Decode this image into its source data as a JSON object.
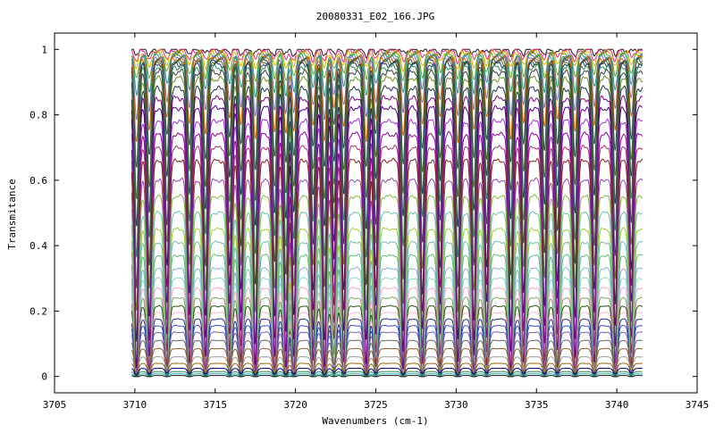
{
  "chart_data": {
    "type": "line",
    "title": "20080331_E02_166.JPG",
    "xlabel": "Wavenumbers (cm-1)",
    "ylabel": "Transmitance",
    "xlim": [
      3705,
      3745
    ],
    "ylim": [
      -0.05,
      1.05
    ],
    "x_ticks": [
      "3705",
      "3710",
      "3715",
      "3720",
      "3725",
      "3730",
      "3735",
      "3740",
      "3745"
    ],
    "x_tick_values": [
      3705,
      3710,
      3715,
      3720,
      3725,
      3730,
      3735,
      3740,
      3745
    ],
    "y_ticks": [
      "0",
      "0.2",
      "0.4",
      "0.6",
      "0.8",
      "1"
    ],
    "y_tick_values": [
      0,
      0.2,
      0.4,
      0.6,
      0.8,
      1
    ],
    "grid": false,
    "legend": "none",
    "x_range": [
      3709.8,
      3741.6
    ],
    "absorption_line_centers": [
      3710.1,
      3710.9,
      3712.0,
      3713.4,
      3714.4,
      3715.9,
      3716.6,
      3717.5,
      3718.7,
      3719.4,
      3719.9,
      3721.1,
      3721.8,
      3722.4,
      3723.0,
      3724.4,
      3725.0,
      3726.7,
      3727.9,
      3729.0,
      3730.1,
      3731.1,
      3731.9,
      3733.4,
      3734.2,
      3735.5,
      3736.3,
      3737.4,
      3738.6,
      3739.9,
      3740.9
    ],
    "absorption_line_strengths": [
      1.0,
      0.9,
      0.7,
      0.8,
      0.9,
      0.7,
      0.8,
      1.0,
      0.9,
      0.95,
      0.9,
      0.8,
      1.0,
      0.6,
      0.8,
      1.0,
      0.7,
      0.95,
      0.8,
      0.7,
      1.0,
      0.9,
      0.7,
      0.95,
      0.8,
      0.85,
      0.75,
      0.9,
      0.8,
      0.85,
      0.7
    ],
    "series": [
      {
        "baseline": 1.0,
        "depth": 0.015,
        "color": "#1a1a1a"
      },
      {
        "baseline": 0.995,
        "depth": 0.03,
        "color": "#e7298a"
      },
      {
        "baseline": 0.99,
        "depth": 0.05,
        "color": "#e6ab02"
      },
      {
        "baseline": 0.985,
        "depth": 0.08,
        "color": "#66a61e"
      },
      {
        "baseline": 0.98,
        "depth": 0.12,
        "color": "#1b9e77"
      },
      {
        "baseline": 0.975,
        "depth": 0.18,
        "color": "#7570b3"
      },
      {
        "baseline": 0.97,
        "depth": 0.25,
        "color": "#d95f02"
      },
      {
        "baseline": 0.965,
        "depth": 0.33,
        "color": "#2f4f4f"
      },
      {
        "baseline": 0.96,
        "depth": 0.42,
        "color": "#556b2f"
      },
      {
        "baseline": 0.955,
        "depth": 0.5,
        "color": "#1f3a5f"
      },
      {
        "baseline": 0.945,
        "depth": 0.58,
        "color": "#2e8b57"
      },
      {
        "baseline": 0.93,
        "depth": 0.66,
        "color": "#3c3c3c"
      },
      {
        "baseline": 0.91,
        "depth": 0.72,
        "color": "#6b8e23"
      },
      {
        "baseline": 0.88,
        "depth": 0.78,
        "color": "#1f2f4f"
      },
      {
        "baseline": 0.85,
        "depth": 0.82,
        "color": "#800080"
      },
      {
        "baseline": 0.82,
        "depth": 0.85,
        "color": "#4b0082"
      },
      {
        "baseline": 0.78,
        "depth": 0.87,
        "color": "#9932cc"
      },
      {
        "baseline": 0.74,
        "depth": 0.88,
        "color": "#8b008b"
      },
      {
        "baseline": 0.7,
        "depth": 0.9,
        "color": "#a0306e"
      },
      {
        "baseline": 0.66,
        "depth": 0.9,
        "color": "#7b1e1e"
      },
      {
        "baseline": 0.6,
        "depth": 0.88,
        "color": "#8e44ad"
      },
      {
        "baseline": 0.55,
        "depth": 0.86,
        "color": "#7cbb3a"
      },
      {
        "baseline": 0.5,
        "depth": 0.82,
        "color": "#66c2a5"
      },
      {
        "baseline": 0.45,
        "depth": 0.78,
        "color": "#9acd32"
      },
      {
        "baseline": 0.41,
        "depth": 0.74,
        "color": "#76b7b2"
      },
      {
        "baseline": 0.37,
        "depth": 0.7,
        "color": "#5fb87a"
      },
      {
        "baseline": 0.33,
        "depth": 0.66,
        "color": "#80b1d3"
      },
      {
        "baseline": 0.3,
        "depth": 0.6,
        "color": "#8dd3c7"
      },
      {
        "baseline": 0.27,
        "depth": 0.52,
        "color": "#f4a6c8"
      },
      {
        "baseline": 0.24,
        "depth": 0.44,
        "color": "#76a85a"
      },
      {
        "baseline": 0.215,
        "depth": 0.36,
        "color": "#2d5016"
      },
      {
        "baseline": 0.195,
        "depth": 0.3,
        "color": "#f7b6d2"
      },
      {
        "baseline": 0.175,
        "depth": 0.26,
        "color": "#1d2f8c"
      },
      {
        "baseline": 0.155,
        "depth": 0.22,
        "color": "#3b4cc0"
      },
      {
        "baseline": 0.135,
        "depth": 0.18,
        "color": "#7a5ea8"
      },
      {
        "baseline": 0.11,
        "depth": 0.12,
        "color": "#666666"
      },
      {
        "baseline": 0.085,
        "depth": 0.08,
        "color": "#8b5a2b"
      },
      {
        "baseline": 0.06,
        "depth": 0.05,
        "color": "#999999"
      },
      {
        "baseline": 0.04,
        "depth": 0.03,
        "color": "#8b6914"
      },
      {
        "baseline": 0.025,
        "depth": 0.02,
        "color": "#000080"
      },
      {
        "baseline": 0.015,
        "depth": 0.015,
        "color": "#2e8b57"
      },
      {
        "baseline": 0.008,
        "depth": 0.01,
        "color": "#20b2aa"
      },
      {
        "baseline": 0.003,
        "depth": 0.008,
        "color": "#1a1a1a"
      }
    ]
  }
}
